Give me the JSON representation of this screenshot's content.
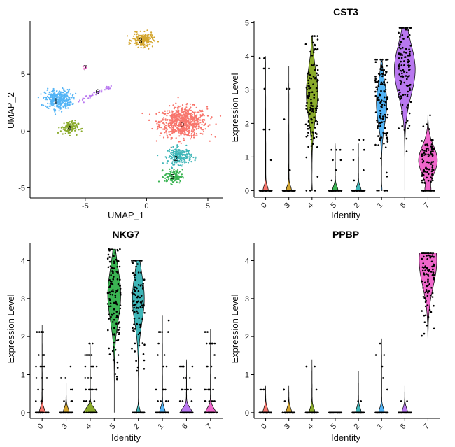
{
  "cluster_colors": {
    "0": "#F8766D",
    "1": "#53B4F6",
    "2": "#3FB6B8",
    "3": "#D4A62F",
    "4": "#8AAB2B",
    "5": "#3BB453",
    "6": "#B978F0",
    "7": "#EF67CB"
  },
  "chart_data": [
    {
      "type": "scatter",
      "title": "",
      "xlabel": "UMAP_1",
      "ylabel": "UMAP_2",
      "xlim": [
        -9.5,
        6.2
      ],
      "ylim": [
        -5.9,
        9.7
      ],
      "xticks": [
        -5,
        0,
        5
      ],
      "yticks": [
        -5,
        0,
        5
      ],
      "tick_labels_x": [
        "-5",
        "0",
        "5"
      ],
      "tick_labels_y": [
        "-5",
        "0",
        "5"
      ],
      "clusters": [
        {
          "id": "0",
          "label": "0",
          "label_pos": [
            2.9,
            0.6
          ],
          "center": [
            3.0,
            0.8
          ],
          "spread": [
            1.6,
            1.1
          ],
          "n": 700
        },
        {
          "id": "1",
          "label": "1",
          "label_pos": [
            -7.4,
            2.7
          ],
          "center": [
            -7.2,
            2.8
          ],
          "spread": [
            0.9,
            0.7
          ],
          "n": 330
        },
        {
          "id": "2",
          "label": "2",
          "label_pos": [
            2.4,
            -2.4
          ],
          "center": [
            2.7,
            -2.2
          ],
          "spread": [
            0.8,
            0.6
          ],
          "n": 230
        },
        {
          "id": "3",
          "label": "3",
          "label_pos": [
            -0.5,
            8.0
          ],
          "center": [
            -0.3,
            8.0
          ],
          "spread": [
            0.7,
            0.5
          ],
          "n": 180
        },
        {
          "id": "4",
          "label": "4",
          "label_pos": [
            -6.3,
            0.3
          ],
          "center": [
            -6.3,
            0.3
          ],
          "spread": [
            0.6,
            0.5
          ],
          "n": 110
        },
        {
          "id": "5",
          "label": "5",
          "label_pos": [
            2.1,
            -4.0
          ],
          "center": [
            2.2,
            -4.0
          ],
          "spread": [
            0.6,
            0.5
          ],
          "n": 120
        },
        {
          "id": "6",
          "label": "6",
          "label_pos": [
            -4.0,
            3.5
          ],
          "center": [
            -4.6,
            3.3
          ],
          "spread": [
            1.4,
            0.4
          ],
          "n": 40
        },
        {
          "id": "7",
          "label": "7",
          "label_pos": [
            -5.0,
            5.6
          ],
          "center": [
            -5.0,
            5.6
          ],
          "spread": [
            0.15,
            0.15
          ],
          "n": 8
        }
      ]
    },
    {
      "type": "violin",
      "title": "CST3",
      "xlabel": "Identity",
      "ylabel": "Expression Level",
      "ylim": [
        -0.2,
        5.05
      ],
      "yticks": [
        0,
        1,
        2,
        3,
        4,
        5
      ],
      "tick_labels_y": [
        "0",
        "1",
        "2",
        "3",
        "4",
        "5"
      ],
      "categories": [
        "0",
        "3",
        "4",
        "5",
        "2",
        "1",
        "6",
        "7"
      ],
      "series": [
        {
          "name": "0",
          "max": 4.0,
          "median": 0.0,
          "mode": 0.0,
          "scale": 0.25,
          "zero_frac": 0.85
        },
        {
          "name": "3",
          "max": 3.7,
          "median": 0.0,
          "mode": 0.0,
          "scale": 0.25,
          "zero_frac": 0.85
        },
        {
          "name": "4",
          "max": 4.6,
          "median": 2.9,
          "mode": 2.9,
          "scale": 0.55,
          "zero_frac": 0.03
        },
        {
          "name": "5",
          "max": 1.4,
          "median": 0.0,
          "mode": 0.0,
          "scale": 0.25,
          "zero_frac": 0.85
        },
        {
          "name": "2",
          "max": 1.4,
          "median": 0.0,
          "mode": 0.0,
          "scale": 0.25,
          "zero_frac": 0.85
        },
        {
          "name": "1",
          "max": 3.9,
          "median": 2.5,
          "mode": 2.6,
          "scale": 0.5,
          "zero_frac": 0.05
        },
        {
          "name": "6",
          "max": 4.85,
          "median": 3.7,
          "mode": 3.6,
          "scale": 1.0,
          "zero_frac": 0.0
        },
        {
          "name": "7",
          "max": 2.7,
          "median": 1.0,
          "mode": 0.9,
          "scale": 0.9,
          "zero_frac": 0.2
        }
      ]
    },
    {
      "type": "violin",
      "title": "NKG7",
      "xlabel": "Identity",
      "ylabel": "Expression Level",
      "ylim": [
        -0.15,
        4.45
      ],
      "yticks": [
        0,
        1,
        2,
        3,
        4
      ],
      "tick_labels_y": [
        "0",
        "1",
        "2",
        "3",
        "4"
      ],
      "categories": [
        "0",
        "3",
        "4",
        "5",
        "2",
        "1",
        "6",
        "7"
      ],
      "series": [
        {
          "name": "0",
          "max": 2.3,
          "median": 0.0,
          "mode": 0.0,
          "scale": 0.25,
          "zero_frac": 0.7
        },
        {
          "name": "3",
          "max": 1.1,
          "median": 0.0,
          "mode": 0.0,
          "scale": 0.25,
          "zero_frac": 0.85
        },
        {
          "name": "4",
          "max": 1.8,
          "median": 0.0,
          "mode": 0.0,
          "scale": 0.55,
          "zero_frac": 0.5
        },
        {
          "name": "5",
          "max": 4.3,
          "median": 3.1,
          "mode": 3.1,
          "scale": 0.6,
          "zero_frac": 0.0
        },
        {
          "name": "2",
          "max": 4.0,
          "median": 2.0,
          "mode": 3.0,
          "scale": 0.55,
          "zero_frac": 0.2
        },
        {
          "name": "1",
          "max": 2.55,
          "median": 0.0,
          "mode": 0.0,
          "scale": 0.25,
          "zero_frac": 0.75
        },
        {
          "name": "6",
          "max": 1.4,
          "median": 0.0,
          "mode": 0.0,
          "scale": 0.5,
          "zero_frac": 0.6
        },
        {
          "name": "7",
          "max": 2.2,
          "median": 0.0,
          "mode": 0.0,
          "scale": 0.45,
          "zero_frac": 0.6
        }
      ]
    },
    {
      "type": "violin",
      "title": "PPBP",
      "xlabel": "Identity",
      "ylabel": "Expression Level",
      "ylim": [
        -0.15,
        4.45
      ],
      "yticks": [
        0,
        1,
        2,
        3,
        4
      ],
      "tick_labels_y": [
        "0",
        "1",
        "2",
        "3",
        "4"
      ],
      "categories": [
        "0",
        "3",
        "4",
        "5",
        "2",
        "1",
        "6",
        "7"
      ],
      "series": [
        {
          "name": "0",
          "max": 0.7,
          "median": 0.0,
          "mode": 0.0,
          "scale": 0.25,
          "zero_frac": 0.9
        },
        {
          "name": "3",
          "max": 0.7,
          "median": 0.0,
          "mode": 0.0,
          "scale": 0.25,
          "zero_frac": 0.95
        },
        {
          "name": "4",
          "max": 1.4,
          "median": 0.0,
          "mode": 0.0,
          "scale": 0.25,
          "zero_frac": 0.9
        },
        {
          "name": "5",
          "max": 0.0,
          "median": 0.0,
          "mode": 0.0,
          "scale": 0.25,
          "zero_frac": 1.0
        },
        {
          "name": "2",
          "max": 1.1,
          "median": 0.0,
          "mode": 0.0,
          "scale": 0.25,
          "zero_frac": 0.95
        },
        {
          "name": "1",
          "max": 1.95,
          "median": 0.0,
          "mode": 0.0,
          "scale": 0.25,
          "zero_frac": 0.9
        },
        {
          "name": "6",
          "max": 0.7,
          "median": 0.0,
          "mode": 0.0,
          "scale": 0.25,
          "zero_frac": 0.9
        },
        {
          "name": "7",
          "max": 4.2,
          "median": 3.7,
          "mode": 4.0,
          "scale": 0.85,
          "zero_frac": 0.0
        }
      ]
    }
  ]
}
